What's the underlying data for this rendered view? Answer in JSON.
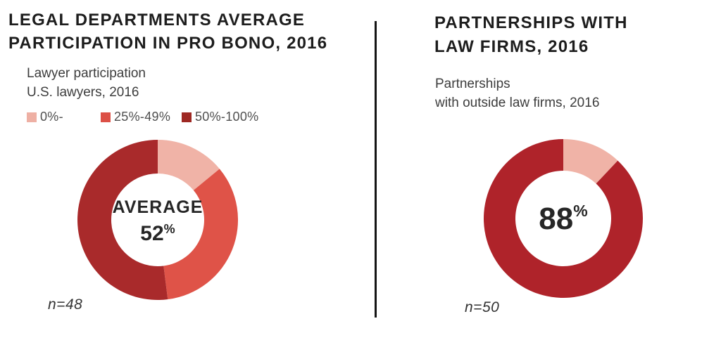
{
  "divider_color": "#151515",
  "left_panel": {
    "title_line1": "LEGAL DEPARTMENTS AVERAGE",
    "title_line2": "PARTICIPATION IN PRO BONO, 2016",
    "subtitle_line1": "Lawyer participation",
    "subtitle_line2": "U.S. lawyers, 2016",
    "center_label": "AVERAGE",
    "center_value": "52",
    "center_unit": "%",
    "sample": "n=48"
  },
  "right_panel": {
    "title_line1": "PARTNERSHIPS WITH",
    "title_line2": "LAW FIRMS, 2016",
    "subtitle_line1": "Partnerships",
    "subtitle_line2": "with outside law firms, 2016",
    "center_value": "88",
    "center_unit": "%",
    "sample": "n=50"
  },
  "chart_data": [
    {
      "type": "donut",
      "title": "LEGAL DEPARTMENTS AVERAGE PARTICIPATION IN PRO BONO, 2016",
      "subtitle": "Lawyer participation U.S. lawyers, 2016",
      "center_text": "AVERAGE 52%",
      "sample_size": "n=48",
      "start_angle_deg": 0,
      "direction": "clockwise",
      "segments": [
        {
          "label": "0%-",
          "value_pct": 14,
          "color": "#f0b3a7",
          "legend_color": "#eeb0a4"
        },
        {
          "label": "25%-49%",
          "value_pct": 34,
          "color": "#df5348",
          "legend_color": "#dc5046"
        },
        {
          "label": "50%-100%",
          "value_pct": 52,
          "color": "#a92a2b",
          "legend_color": "#9e2823"
        }
      ]
    },
    {
      "type": "donut",
      "title": "PARTNERSHIPS WITH LAW FIRMS, 2016",
      "subtitle": "Partnerships with outside law firms, 2016",
      "center_text": "88%",
      "sample_size": "n=50",
      "start_angle_deg": 0,
      "direction": "clockwise",
      "segments": [
        {
          "label": "",
          "value_pct": 12,
          "color": "#f0b3a7"
        },
        {
          "label": "",
          "value_pct": 88,
          "color": "#af232a"
        }
      ]
    }
  ]
}
